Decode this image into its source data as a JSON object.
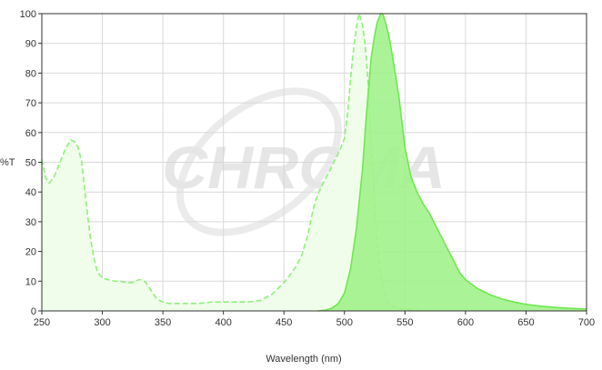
{
  "chart_data": {
    "type": "area",
    "xlabel": "Wavelength (nm)",
    "ylabel": "%T",
    "xlim": [
      250,
      700
    ],
    "ylim": [
      0,
      100
    ],
    "xticks": [
      250,
      300,
      350,
      400,
      450,
      500,
      550,
      600,
      650,
      700
    ],
    "yticks": [
      0,
      10,
      20,
      30,
      40,
      50,
      60,
      70,
      80,
      90,
      100
    ],
    "grid": true,
    "watermark": "CHROMA",
    "series": [
      {
        "style": "dashed-pale",
        "color": "#8ff07a",
        "fill": "#f0fdea",
        "x": [
          250,
          253,
          256,
          260,
          265,
          270,
          274,
          277,
          280,
          283,
          287,
          290,
          293,
          296,
          300,
          305,
          310,
          315,
          320,
          325,
          330,
          333,
          336,
          340,
          345,
          350,
          355,
          360,
          370,
          380,
          390,
          400,
          410,
          420,
          425,
          430,
          435,
          440,
          445,
          450,
          455,
          460,
          465,
          470,
          473,
          476,
          480,
          485,
          490,
          495,
          500,
          503,
          505,
          507,
          509,
          511,
          512,
          513,
          515,
          517,
          519,
          521,
          523,
          525,
          527,
          530,
          533,
          536,
          540,
          545,
          550,
          555,
          560,
          565,
          570
        ],
        "y": [
          51,
          45,
          43,
          45,
          50,
          55,
          57.5,
          57,
          55,
          50,
          35,
          25,
          18,
          13,
          11,
          10.5,
          10,
          10,
          9.5,
          9.5,
          10.5,
          10.5,
          9.5,
          7,
          4,
          3,
          2.5,
          2.5,
          2.5,
          2.5,
          3,
          3,
          3,
          3,
          3.2,
          3.5,
          4.5,
          5.5,
          7.5,
          9.5,
          12,
          15,
          19,
          26,
          32,
          37,
          41,
          45,
          49,
          53,
          58,
          68,
          78,
          86,
          93,
          98,
          100,
          99,
          96,
          90,
          80,
          65,
          50,
          35,
          22,
          12,
          6,
          3,
          1.5,
          1,
          0.5,
          0.5,
          0.3,
          0.2,
          0.1
        ]
      },
      {
        "style": "solid-bright",
        "color": "#6ee84f",
        "fill": "#a2f28c",
        "x": [
          478,
          485,
          490,
          495,
          500,
          505,
          510,
          515,
          518,
          520,
          522,
          525,
          527,
          529,
          530,
          531,
          532,
          534,
          537,
          540,
          545,
          550,
          555,
          560,
          565,
          570,
          575,
          580,
          585,
          590,
          595,
          600,
          610,
          620,
          630,
          640,
          650,
          660,
          670,
          680,
          690,
          700
        ],
        "y": [
          0,
          0.3,
          1,
          2.5,
          6,
          14,
          28,
          48,
          65,
          75,
          85,
          93,
          97,
          99,
          100,
          100,
          99.5,
          97,
          92,
          85,
          72,
          55,
          45,
          40,
          36,
          33,
          29,
          25,
          21,
          17,
          13,
          10.5,
          7.5,
          5.5,
          4,
          3,
          2.2,
          1.7,
          1.3,
          1,
          0.8,
          0.6
        ]
      }
    ]
  }
}
